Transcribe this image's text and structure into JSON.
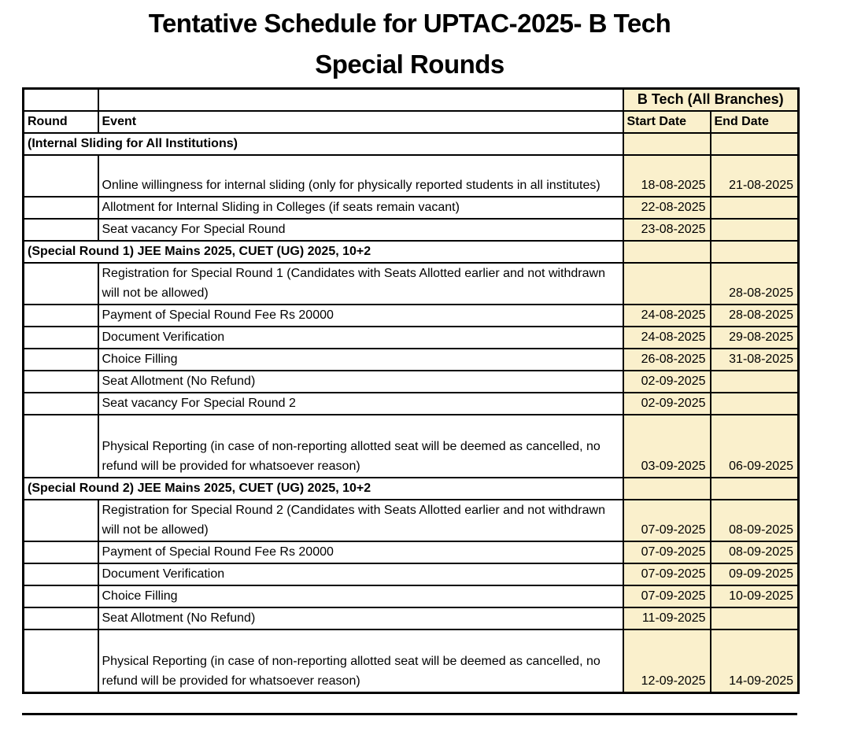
{
  "page": {
    "title_line1": "Tentative Schedule for UPTAC-2025- B Tech",
    "title_line2": "Special Rounds"
  },
  "colors": {
    "highlight": "#FAF0CC",
    "border": "#000000",
    "text": "#000000"
  },
  "table": {
    "group_header": "B Tech (All Branches)",
    "col_round": "Round",
    "col_event": "Event",
    "col_start": "Start Date",
    "col_end": "End Date",
    "rows": [
      {
        "section": "(Internal Sliding for All Institutions)"
      },
      {
        "event": "Online willingness for internal sliding (only for physically reported students in all institutes)",
        "start": "18-08-2025",
        "end": "21-08-2025"
      },
      {
        "event": "Allotment for Internal Sliding in Colleges (if seats remain vacant)",
        "start": "22-08-2025",
        "end": ""
      },
      {
        "event": "Seat vacancy For Special Round",
        "start": "23-08-2025",
        "end": ""
      },
      {
        "section": "(Special Round 1)  JEE Mains 2025, CUET (UG) 2025,  10+2"
      },
      {
        "event": "Registration for Special Round 1 (Candidates with Seats Allotted earlier and not withdrawn will not be allowed)",
        "start": "",
        "end": "28-08-2025"
      },
      {
        "event": "Payment of Special Round Fee Rs 20000",
        "start": "24-08-2025",
        "end": "28-08-2025"
      },
      {
        "event": "Document Verification",
        "start": "24-08-2025",
        "end": "29-08-2025"
      },
      {
        "event": "Choice Filling",
        "start": "26-08-2025",
        "end": "31-08-2025"
      },
      {
        "event": "Seat Allotment (No Refund)",
        "start": "02-09-2025",
        "end": ""
      },
      {
        "event": "Seat vacancy For Special Round 2",
        "start": "02-09-2025",
        "end": ""
      },
      {
        "event": "Physical Reporting  (in case of non-reporting allotted seat will be deemed as cancelled, no refund will be provided for whatsoever reason)",
        "start": "03-09-2025",
        "end": "06-09-2025"
      },
      {
        "section": "(Special Round 2)  JEE Mains 2025, CUET (UG) 2025,  10+2"
      },
      {
        "event": "Registration for Special Round 2  (Candidates with Seats Allotted earlier and not withdrawn will not be allowed)",
        "start": "07-09-2025",
        "end": "08-09-2025"
      },
      {
        "event": "Payment of Special Round Fee Rs 20000",
        "start": "07-09-2025",
        "end": "08-09-2025"
      },
      {
        "event": "Document Verification",
        "start": "07-09-2025",
        "end": "09-09-2025"
      },
      {
        "event": "Choice Filling",
        "start": "07-09-2025",
        "end": "10-09-2025"
      },
      {
        "event": "Seat Allotment (No Refund)",
        "start": "11-09-2025",
        "end": ""
      },
      {
        "event": "Physical Reporting  (in case of non-reporting allotted seat will be deemed as cancelled, no refund will be provided for whatsoever reason)",
        "start": "12-09-2025",
        "end": "14-09-2025"
      }
    ]
  }
}
